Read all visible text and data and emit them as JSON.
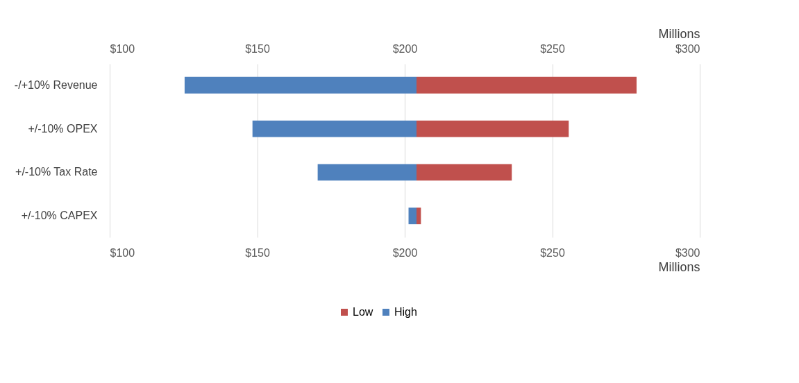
{
  "chart_data": {
    "type": "bar",
    "orientation": "horizontal",
    "categories": [
      "-/+10% Revenue",
      "+/-10% OPEX",
      "+/-10% Tax Rate",
      "+/-10% CAPEX"
    ],
    "series": [
      {
        "name": "Low",
        "color": "#c0504d",
        "base": [
          204,
          204,
          204,
          204
        ],
        "values": [
          74.6,
          51.6,
          32.3,
          1.5
        ]
      },
      {
        "name": "High",
        "color": "#4f81bd",
        "base": [
          125.4,
          148.4,
          170.5,
          201.3
        ],
        "values": [
          78.6,
          55.6,
          33.5,
          2.7
        ]
      }
    ],
    "xlim": [
      100,
      300
    ],
    "xticks": [
      {
        "value": 100,
        "label": "$100"
      },
      {
        "value": 150,
        "label": "$150"
      },
      {
        "value": 200,
        "label": "$200"
      },
      {
        "value": 250,
        "label": "$250"
      },
      {
        "value": 300,
        "label": "$300"
      }
    ],
    "x2lim": [
      100,
      300
    ],
    "x2ticks": [
      {
        "value": 100,
        "label": "$100"
      },
      {
        "value": 150,
        "label": "$150"
      },
      {
        "value": 200,
        "label": "$200"
      },
      {
        "value": 250,
        "label": "$250"
      },
      {
        "value": 300,
        "label": "$300"
      }
    ],
    "xlabel": "Millions",
    "x2label": "Millions",
    "grid": "x",
    "legend": "bottom"
  }
}
